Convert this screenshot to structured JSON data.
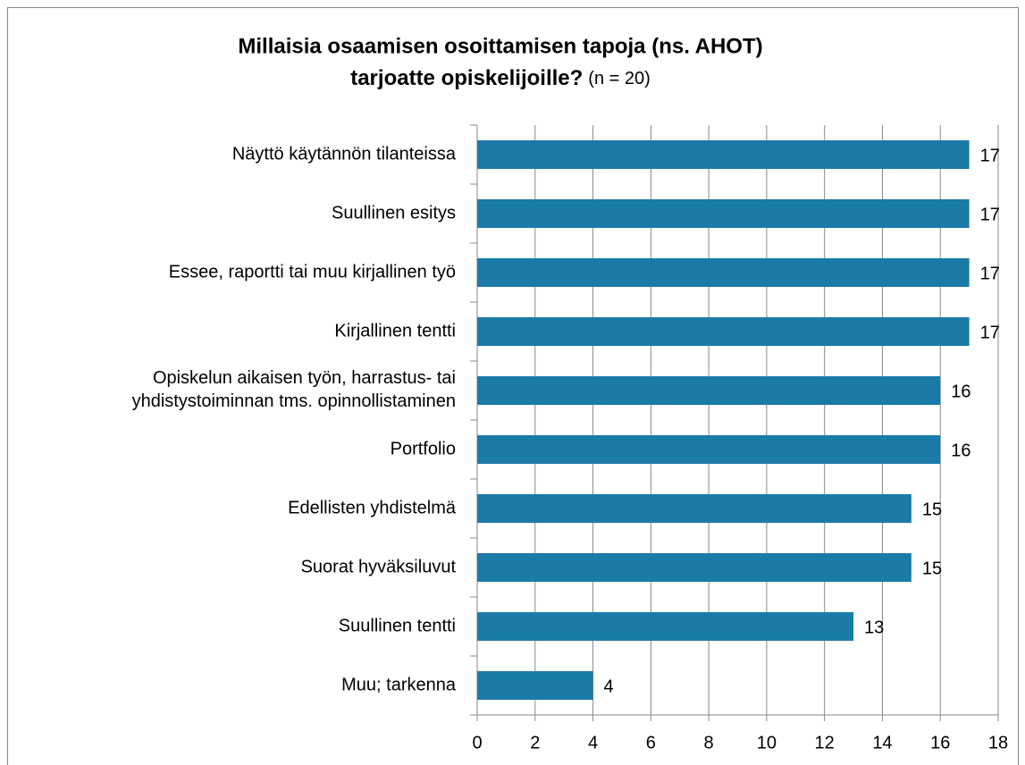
{
  "chart_data": {
    "type": "bar",
    "orientation": "horizontal",
    "title": [
      "Millaisia osaamisen osoittamisen tapoja (ns. AHOT)",
      "tarjoatte opiskelijoille?"
    ],
    "subtitle": "(n = 20)",
    "categories": [
      "Näyttö käytännön tilanteissa",
      "Suullinen esitys",
      "Essee, raportti tai muu kirjallinen työ",
      "Kirjallinen tentti",
      "Opiskelun aikaisen työn, harrastus- tai\nyhdistystoiminnan tms. opinnollistaminen",
      "Portfolio",
      "Edellisten yhdistelmä",
      "Suorat hyväksiluvut",
      "Suullinen tentti",
      "Muu; tarkenna"
    ],
    "values": [
      17,
      17,
      17,
      17,
      16,
      16,
      15,
      15,
      13,
      4
    ],
    "color": "#1a7aa8",
    "xlim": [
      0,
      18
    ],
    "xticks": [
      0,
      2,
      4,
      6,
      8,
      10,
      12,
      14,
      16,
      18
    ],
    "grid": true
  }
}
